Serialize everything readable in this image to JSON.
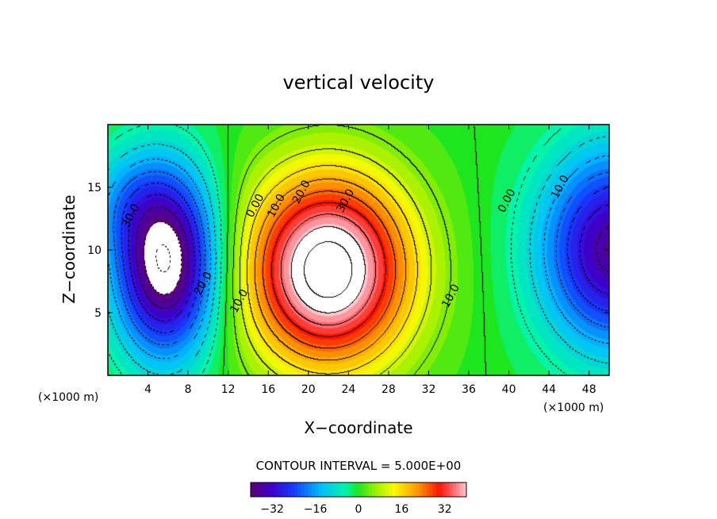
{
  "chart_data": {
    "type": "heatmap",
    "title": "vertical velocity",
    "xlabel": "X−coordinate",
    "ylabel": "Z−coordinate",
    "x_unit_left": "(×1000 m)",
    "x_unit_right": "(×1000 m)",
    "xlim": [
      0,
      50
    ],
    "ylim": [
      0,
      20
    ],
    "x_ticks": [
      4,
      8,
      12,
      16,
      20,
      24,
      28,
      32,
      36,
      40,
      44,
      48
    ],
    "x_tick_labels": [
      "4",
      "8",
      "12",
      "16",
      "20",
      "24",
      "28",
      "32",
      "36",
      "40",
      "44",
      "48"
    ],
    "y_ticks": [
      5,
      10,
      15
    ],
    "y_tick_labels": [
      "5",
      "10",
      "15"
    ],
    "contour_interval_text": "CONTOUR INTERVAL = 5.000E+00",
    "contour_interval": 5,
    "field_extrema": [
      {
        "type": "min",
        "x": 5.8,
        "z": 9.0,
        "value": -40
      },
      {
        "type": "max",
        "x": 22.0,
        "z": 8.4,
        "value": 40
      },
      {
        "type": "min",
        "x": 49.5,
        "z": 10.0,
        "value": -30
      }
    ],
    "contour_labels": [
      {
        "text": "30.0",
        "x": 2.6,
        "z": 12.6
      },
      {
        "text": "20.0",
        "x": 9.8,
        "z": 7.2
      },
      {
        "text": "10.0",
        "x": 13.4,
        "z": 5.8
      },
      {
        "text": "0.00",
        "x": 15.0,
        "z": 13.4
      },
      {
        "text": "10.0",
        "x": 17.1,
        "z": 13.4
      },
      {
        "text": "20.0",
        "x": 19.6,
        "z": 14.5
      },
      {
        "text": "30.0",
        "x": 24.0,
        "z": 13.8
      },
      {
        "text": "10.0",
        "x": 34.5,
        "z": 6.2
      },
      {
        "text": "0.00",
        "x": 40.1,
        "z": 13.8
      },
      {
        "text": "10.0",
        "x": 45.4,
        "z": 14.9
      }
    ],
    "colorbar": {
      "range": [
        -40,
        40
      ],
      "tick_values": [
        -32,
        -16,
        0,
        16,
        32
      ],
      "tick_labels": [
        "−32",
        "−16",
        "0",
        "16",
        "32"
      ]
    }
  }
}
